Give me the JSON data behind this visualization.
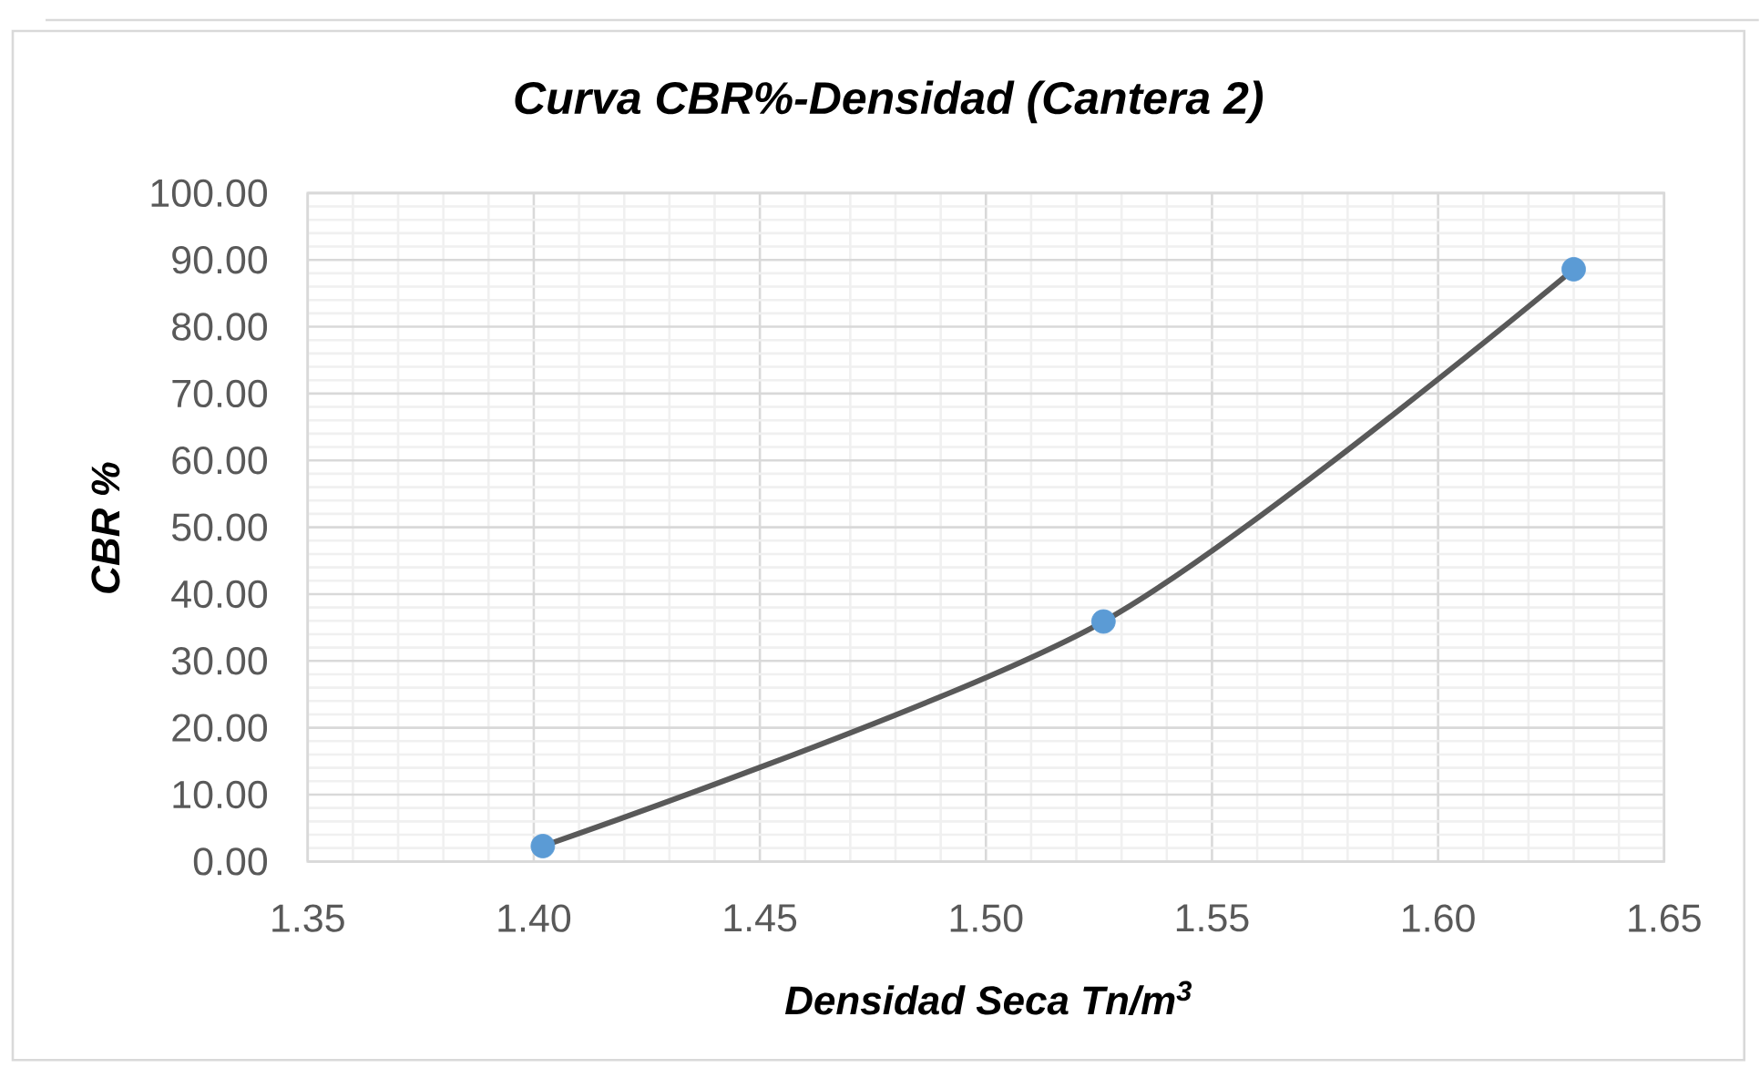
{
  "chart_data": {
    "type": "line",
    "title": "Curva CBR%-Densidad (Cantera 2)",
    "xlabel": "Densidad Seca Tn/m$^{3}$",
    "ylabel": "CBR %",
    "x": [
      1.402,
      1.526,
      1.63
    ],
    "series": [
      {
        "color": "#595959",
        "marker": "none",
        "values": [
          2.3,
          35.9,
          88.6
        ]
      },
      {
        "type": "scatter",
        "color": "#5b9bd5",
        "marker": "circle",
        "values": [
          2.3,
          35.9,
          88.6
        ]
      }
    ],
    "xlim": [
      1.35,
      1.65
    ],
    "ylim": [
      0,
      100
    ],
    "xticks": [
      1.35,
      {
        "value": 1.4,
        "label": "1.40"
      },
      1.45,
      {
        "value": 1.5,
        "label": "1.50"
      },
      1.55,
      {
        "value": 1.6,
        "label": "1.60"
      },
      1.65
    ],
    "yticks": [
      {
        "value": 0,
        "label": "0.00"
      },
      {
        "value": 10,
        "label": "10.00"
      },
      {
        "value": 20,
        "label": "20.00"
      },
      {
        "value": 30,
        "label": "30.00"
      },
      {
        "value": 40,
        "label": "40.00"
      },
      {
        "value": 50,
        "label": "50.00"
      },
      {
        "value": 60,
        "label": "60.00"
      },
      {
        "value": 70,
        "label": "70.00"
      },
      {
        "value": 80,
        "label": "80.00"
      },
      {
        "value": 90,
        "label": "90.00"
      },
      {
        "value": 100,
        "label": "100.00"
      }
    ],
    "grid": true,
    "line_style": "solid"
  }
}
